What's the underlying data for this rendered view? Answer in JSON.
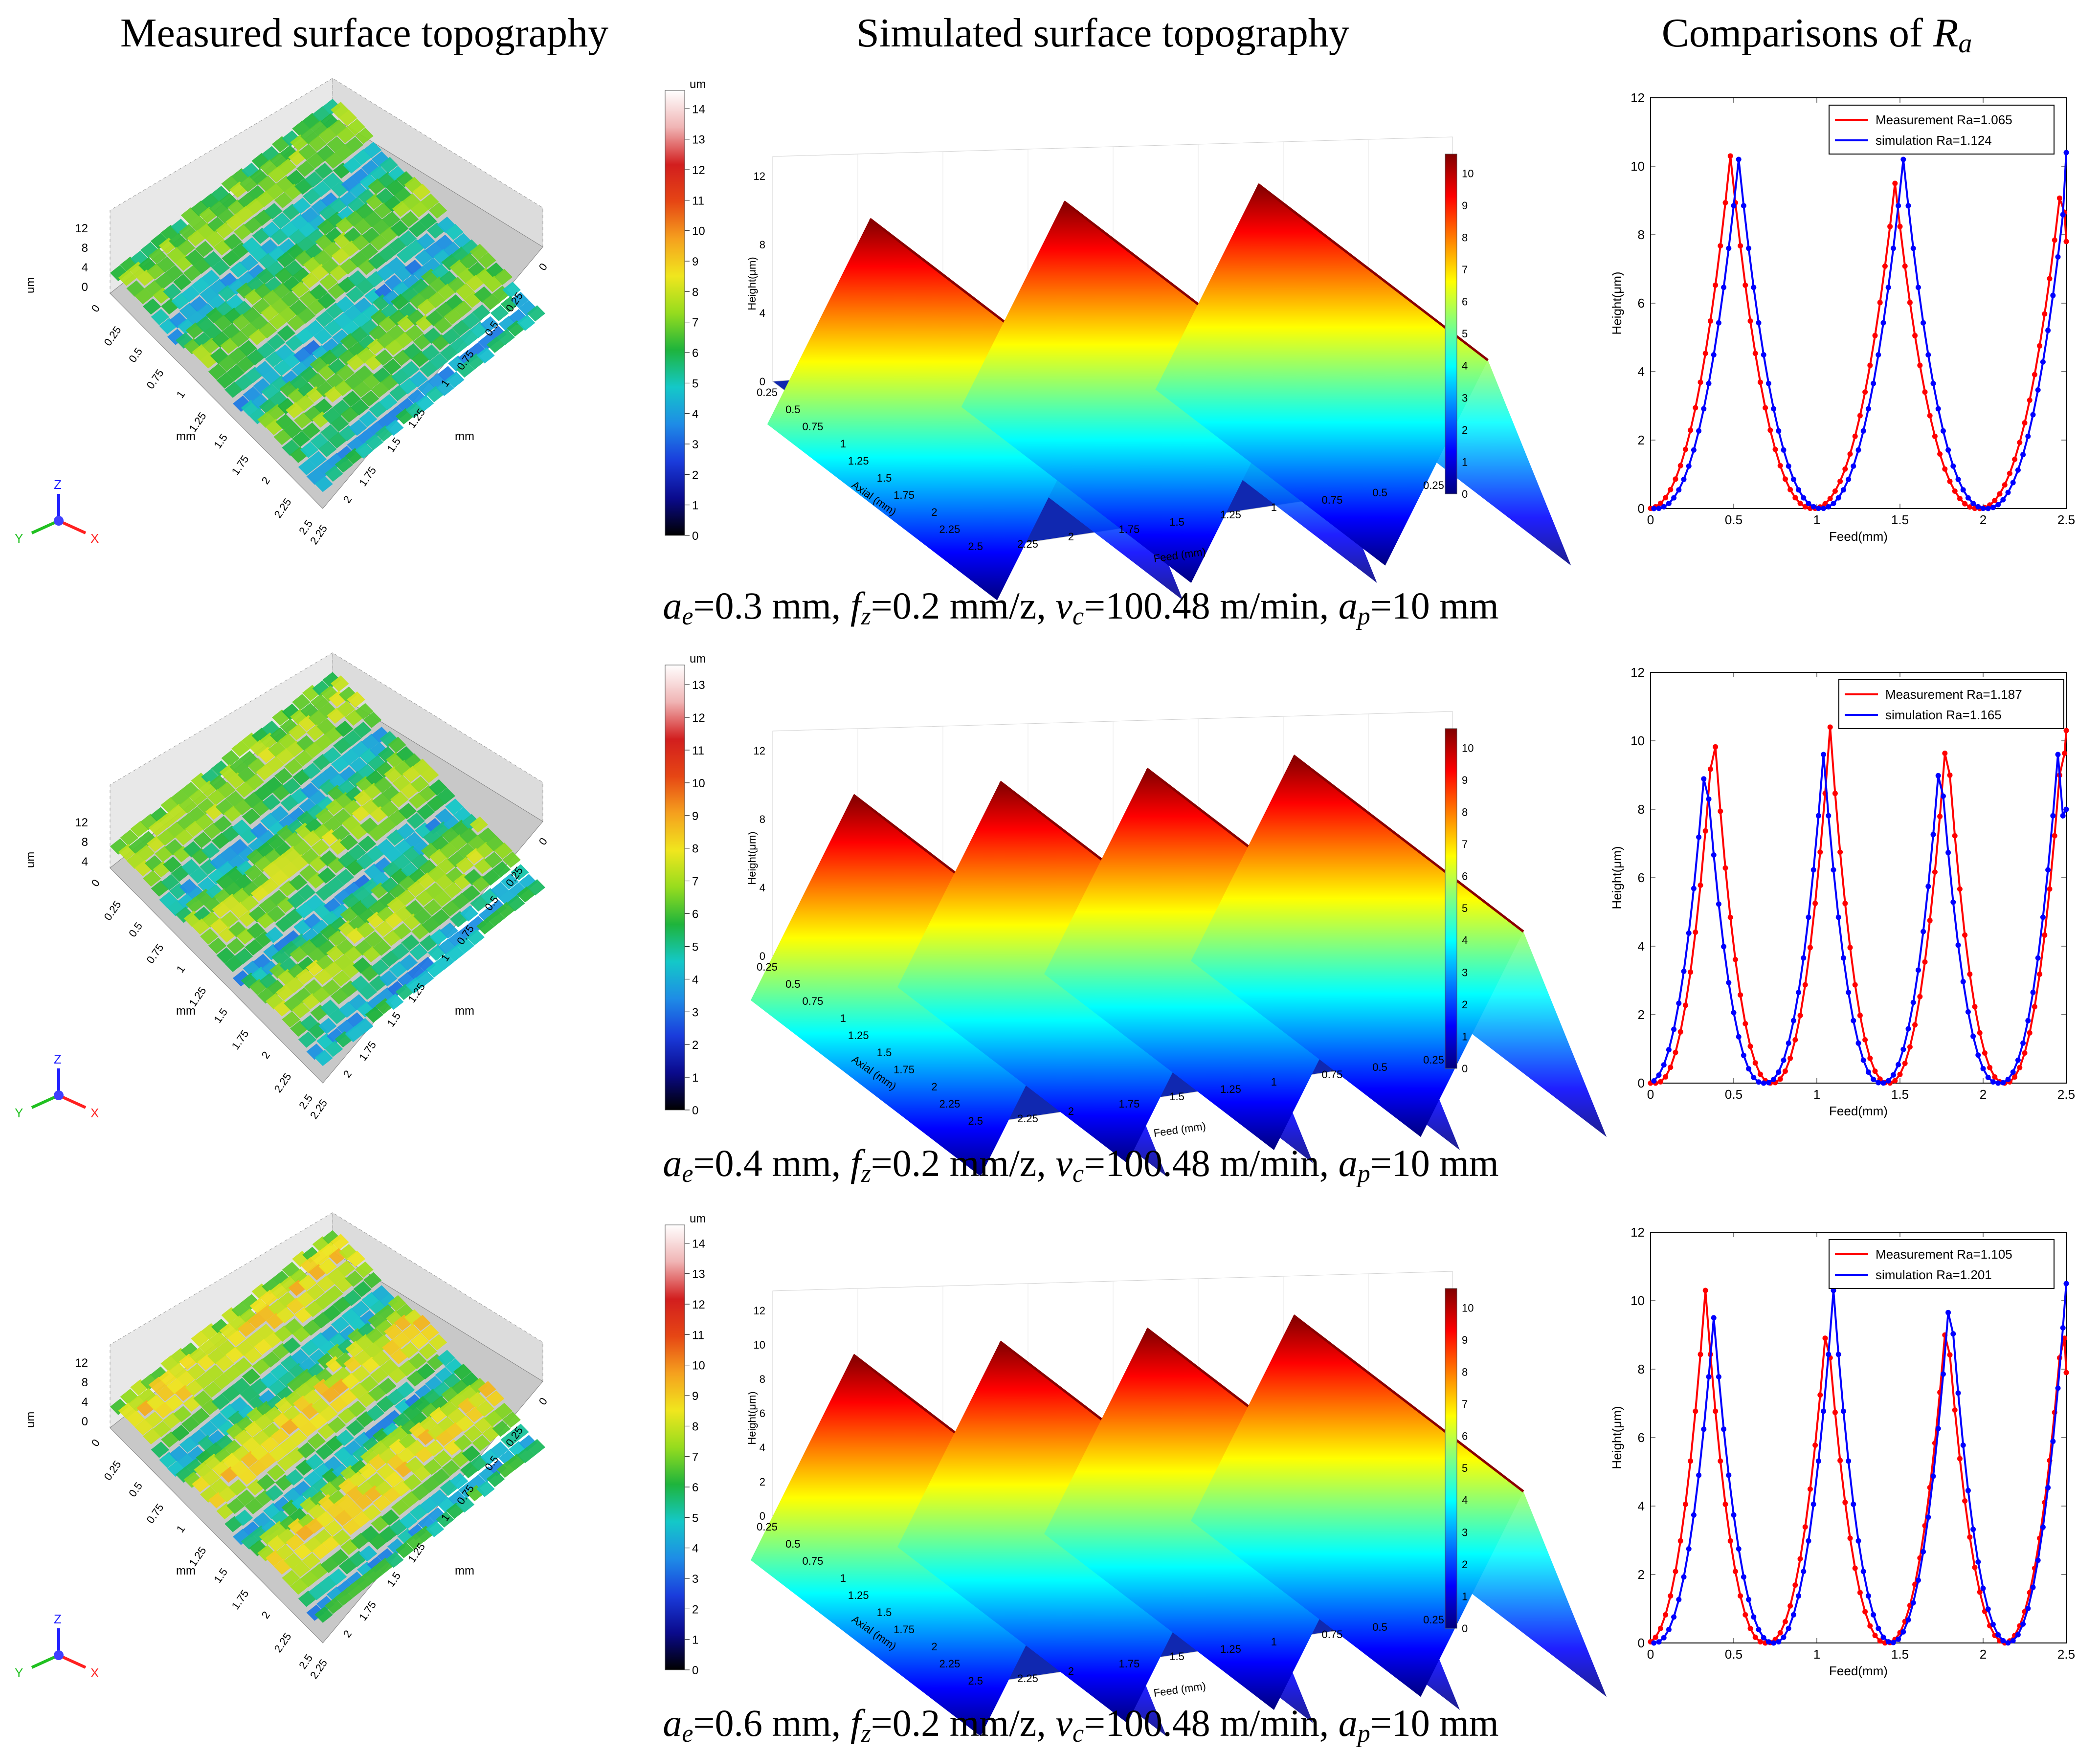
{
  "headers": {
    "measured": "Measured surface topography",
    "simulated": "Simulated surface topography",
    "comparison_prefix": "Comparisons of ",
    "comparison_symbol": "R",
    "comparison_sub": "a"
  },
  "colorbar": {
    "stops": [
      "#000000",
      "#0a0a8c",
      "#1a3cdc",
      "#1e8ce6",
      "#14c8c8",
      "#1eb43c",
      "#96dc1e",
      "#f0e61e",
      "#f5a01e",
      "#e64614",
      "#d21e1e",
      "#f0b4b4",
      "#ffffff"
    ],
    "sim_stops": [
      "#00007f",
      "#0000ff",
      "#0080ff",
      "#00ffff",
      "#80ff80",
      "#ffff00",
      "#ff8000",
      "#ff0000",
      "#7f0000"
    ]
  },
  "axis_icon": {
    "z": "Z",
    "y": "Y",
    "x": "X"
  },
  "rows": [
    {
      "caption": {
        "ae": "0.3",
        "fz": "0.2",
        "vc": "100.48",
        "ap": "10",
        "text_ae": "=0.3 mm, ",
        "text_fz": "=0.2 mm/z, ",
        "text_vc": "=100.48 m/min, ",
        "text_ap": "=10 mm"
      },
      "measured": {
        "unit": "um",
        "z_ticks": [
          "12",
          "8",
          "4",
          "0"
        ],
        "left_ticks": [
          "2.5",
          "2.25",
          "2",
          "1.75",
          "1.5",
          "1.25",
          "1",
          "0.75",
          "0.5",
          "0.25",
          "0"
        ],
        "right_ticks": [
          "0",
          "0.25",
          "0.5",
          "0.75",
          "1",
          "1.25",
          "1.5",
          "1.75",
          "2",
          "2.25"
        ],
        "axis_label": "mm",
        "colorbar_unit": "um",
        "colorbar_ticks": [
          "14",
          "13",
          "12",
          "11",
          "10",
          "9",
          "8",
          "7",
          "6",
          "5",
          "4",
          "3",
          "2",
          "1",
          "0"
        ],
        "colorbar_max": 14.6,
        "grooves": 3,
        "warmth": 0.0
      },
      "simulated": {
        "ylabel": "Height(μm)",
        "z_ticks": [
          "12",
          "8",
          "4",
          "0"
        ],
        "axial_label": "Axial (mm)",
        "axial_ticks": [
          "0.25",
          "0.5",
          "0.75",
          "1",
          "1.25",
          "1.5",
          "1.75",
          "2",
          "2.25",
          "2.5"
        ],
        "feed_label": "Feed (mm)",
        "feed_ticks": [
          "2.25",
          "2",
          "1.75",
          "1.5",
          "1.25",
          "1",
          "0.75",
          "0.5",
          "0.25"
        ],
        "colorbar_ticks": [
          "10",
          "9",
          "8",
          "7",
          "6",
          "5",
          "4",
          "3",
          "2",
          "1",
          "0"
        ],
        "ridges": 3
      },
      "comparison": {
        "type": "line",
        "xlabel": "Feed(mm)",
        "ylabel": "Height(μm)",
        "xlim": [
          0,
          2.5
        ],
        "ylim": [
          0,
          12
        ],
        "x_ticks": [
          0,
          0.5,
          1,
          1.5,
          2,
          2.5
        ],
        "y_ticks": [
          0,
          2,
          4,
          6,
          8,
          10,
          12
        ],
        "series": [
          {
            "name": "Measurement Ra=1.065",
            "color": "#ff0000",
            "period": 1.0,
            "peaks": [
              0.48,
              1.47,
              2.47
            ],
            "peak_heights": [
              10.3,
              9.5,
              9.5
            ],
            "end_value": 7.8
          },
          {
            "name": "simulation Ra=1.124",
            "color": "#0000ff",
            "period": 1.0,
            "peaks": [
              0.53,
              1.52,
              2.52
            ],
            "peak_heights": [
              10.2,
              10.2,
              10.4
            ],
            "end_value": 10.4
          }
        ],
        "legend_position": "top-right"
      }
    },
    {
      "caption": {
        "ae": "0.4",
        "fz": "0.2",
        "vc": "100.48",
        "ap": "10",
        "text_ae": "=0.4 mm, ",
        "text_fz": "=0.2 mm/z, ",
        "text_vc": "=100.48 m/min, ",
        "text_ap": "=10 mm"
      },
      "measured": {
        "unit": "um",
        "z_ticks": [
          "12",
          "8",
          "4"
        ],
        "left_ticks": [
          "2.5",
          "2.25",
          "2",
          "1.75",
          "1.5",
          "1.25",
          "1",
          "0.75",
          "0.5",
          "0.25",
          "0"
        ],
        "right_ticks": [
          "0",
          "0.25",
          "0.5",
          "0.75",
          "1",
          "1.25",
          "1.5",
          "1.75",
          "2",
          "2.25"
        ],
        "axis_label": "mm",
        "colorbar_unit": "um",
        "colorbar_ticks": [
          "13",
          "12",
          "11",
          "10",
          "9",
          "8",
          "7",
          "6",
          "5",
          "4",
          "3",
          "2",
          "1",
          "0"
        ],
        "colorbar_max": 13.6,
        "grooves": 3,
        "warmth": 0.15
      },
      "simulated": {
        "ylabel": "Height(μm)",
        "z_ticks": [
          "12",
          "8",
          "4",
          "0"
        ],
        "axial_label": "Axial (mm)",
        "axial_ticks": [
          "0.25",
          "0.5",
          "0.75",
          "1",
          "1.25",
          "1.5",
          "1.75",
          "2",
          "2.25",
          "2.5"
        ],
        "feed_label": "Feed (mm)",
        "feed_ticks": [
          "2.25",
          "2",
          "1.75",
          "1.5",
          "1.25",
          "1",
          "0.75",
          "0.5",
          "0.25"
        ],
        "colorbar_ticks": [
          "10",
          "9",
          "8",
          "7",
          "6",
          "5",
          "4",
          "3",
          "2",
          "1",
          "0"
        ],
        "ridges": 4
      },
      "comparison": {
        "type": "line",
        "xlabel": "Feed(mm)",
        "ylabel": "Height(μm)",
        "xlim": [
          0,
          2.5
        ],
        "ylim": [
          0,
          12
        ],
        "x_ticks": [
          0,
          0.5,
          1,
          1.5,
          2,
          2.5
        ],
        "y_ticks": [
          0,
          2,
          4,
          6,
          8,
          10,
          12
        ],
        "series": [
          {
            "name": "Measurement Ra=1.187",
            "color": "#ff0000",
            "period": 0.7,
            "peaks": [
              0.38,
              1.08,
              1.78,
              2.48
            ],
            "peak_heights": [
              10.5,
              10.4,
              10.3,
              10.3
            ],
            "end_value": 10.3
          },
          {
            "name": "simulation Ra=1.165",
            "color": "#0000ff",
            "period": 0.7,
            "peaks": [
              0.33,
              1.04,
              1.74,
              2.45
            ],
            "peak_heights": [
              9.5,
              9.6,
              9.6,
              9.6
            ],
            "end_value": 8.0
          }
        ],
        "legend_position": "top-right"
      }
    },
    {
      "caption": {
        "ae": "0.6",
        "fz": "0.2",
        "vc": "100.48",
        "ap": "10",
        "text_ae": "=0.6 mm, ",
        "text_fz": "=0.2 mm/z, ",
        "text_vc": "=100.48 m/min, ",
        "text_ap": "=10 mm"
      },
      "measured": {
        "unit": "um",
        "z_ticks": [
          "12",
          "8",
          "4",
          "0"
        ],
        "left_ticks": [
          "2.5",
          "2.25",
          "2",
          "1.75",
          "1.5",
          "1.25",
          "1",
          "0.75",
          "0.5",
          "0.25",
          "0"
        ],
        "right_ticks": [
          "0",
          "0.25",
          "0.5",
          "0.75",
          "1",
          "1.25",
          "1.5",
          "1.75",
          "2",
          "2.25"
        ],
        "axis_label": "mm",
        "colorbar_unit": "um",
        "colorbar_ticks": [
          "14",
          "13",
          "12",
          "11",
          "10",
          "9",
          "8",
          "7",
          "6",
          "5",
          "4",
          "3",
          "2",
          "1",
          "0"
        ],
        "colorbar_max": 14.6,
        "grooves": 3,
        "warmth": 0.55
      },
      "simulated": {
        "ylabel": "Height(μm)",
        "z_ticks": [
          "12",
          "10",
          "8",
          "6",
          "4",
          "2",
          "0"
        ],
        "axial_label": "Axial (mm)",
        "axial_ticks": [
          "0.25",
          "0.5",
          "0.75",
          "1",
          "1.25",
          "1.5",
          "1.75",
          "2",
          "2.25",
          "2.5"
        ],
        "feed_label": "Feed (mm)",
        "feed_ticks": [
          "2.25",
          "2",
          "1.75",
          "1.5",
          "1.25",
          "1",
          "0.75",
          "0.5",
          "0.25"
        ],
        "colorbar_ticks": [
          "10",
          "9",
          "8",
          "7",
          "6",
          "5",
          "4",
          "3",
          "2",
          "1",
          "0"
        ],
        "ridges": 4
      },
      "comparison": {
        "type": "line",
        "xlabel": "Feed(mm)",
        "ylabel": "Height(μm)",
        "xlim": [
          0,
          2.5
        ],
        "ylim": [
          0,
          12
        ],
        "x_ticks": [
          0,
          0.5,
          1,
          1.5,
          2,
          2.5
        ],
        "y_ticks": [
          0,
          2,
          4,
          6,
          8,
          10,
          12
        ],
        "series": [
          {
            "name": "Measurement Ra=1.105",
            "color": "#ff0000",
            "period": 0.72,
            "peaks": [
              0.33,
              1.06,
              1.78,
              2.48
            ],
            "peak_heights": [
              10.3,
              9.5,
              9.6,
              9.5
            ],
            "end_value": 7.9
          },
          {
            "name": "simulation Ra=1.201",
            "color": "#0000ff",
            "period": 0.72,
            "peaks": [
              0.38,
              1.1,
              1.8,
              2.5
            ],
            "peak_heights": [
              9.5,
              10.3,
              10.3,
              10.5
            ],
            "end_value": 10.5
          }
        ],
        "legend_position": "top-right"
      }
    }
  ],
  "chart_data": [
    {
      "type": "line",
      "title": "",
      "xlabel": "Feed(mm)",
      "ylabel": "Height(μm)",
      "xlim": [
        0,
        2.5
      ],
      "ylim": [
        0,
        12
      ],
      "series": [
        {
          "name": "Measurement Ra=1.065",
          "x": [
            0,
            0.2,
            0.35,
            0.48,
            0.6,
            0.8,
            0.95,
            1.2,
            1.35,
            1.47,
            1.6,
            1.8,
            1.95,
            2.2,
            2.35,
            2.47,
            2.5
          ],
          "values": [
            0,
            0.9,
            5.5,
            10.3,
            4.5,
            0.6,
            0,
            0.9,
            5.5,
            9.5,
            4.5,
            0.6,
            0,
            0.9,
            5.5,
            9.5,
            7.8
          ]
        },
        {
          "name": "simulation Ra=1.124",
          "x": [
            0.05,
            0.25,
            0.4,
            0.53,
            0.65,
            0.85,
            1.0,
            1.25,
            1.4,
            1.52,
            1.65,
            1.85,
            2.0,
            2.25,
            2.4,
            2.52
          ],
          "values": [
            0,
            0.9,
            4.5,
            10.2,
            4.5,
            0.6,
            0,
            0.9,
            4.5,
            10.2,
            4.5,
            0.6,
            0,
            0.9,
            4.5,
            10.4
          ]
        }
      ]
    },
    {
      "type": "line",
      "title": "",
      "xlabel": "Feed(mm)",
      "ylabel": "Height(μm)",
      "xlim": [
        0,
        2.5
      ],
      "ylim": [
        0,
        12
      ],
      "series": [
        {
          "name": "Measurement Ra=1.187",
          "x": [
            0.05,
            0.2,
            0.3,
            0.38,
            0.5,
            0.6,
            0.72,
            0.9,
            1.0,
            1.08,
            1.2,
            1.3,
            1.42,
            1.6,
            1.7,
            1.78,
            1.9,
            2.0,
            2.12,
            2.3,
            2.4,
            2.48
          ],
          "values": [
            0,
            1.2,
            5.5,
            10.5,
            5.0,
            1.0,
            0,
            1.2,
            5.5,
            10.4,
            5.0,
            1.0,
            0,
            1.2,
            5.5,
            10.3,
            5.0,
            1.0,
            0,
            1.2,
            5.5,
            10.3
          ]
        },
        {
          "name": "simulation Ra=1.165",
          "x": [
            0.0,
            0.15,
            0.25,
            0.33,
            0.45,
            0.55,
            0.68,
            0.85,
            0.95,
            1.04,
            1.15,
            1.25,
            1.38,
            1.55,
            1.65,
            1.74,
            1.85,
            1.95,
            2.08,
            2.25,
            2.35,
            2.45,
            2.5
          ],
          "values": [
            0,
            1.2,
            5.0,
            9.5,
            4.5,
            1.0,
            0,
            1.2,
            5.0,
            9.6,
            4.5,
            1.0,
            0,
            1.2,
            5.0,
            9.6,
            4.5,
            1.0,
            0,
            1.2,
            5.0,
            9.6,
            8.0
          ]
        }
      ]
    },
    {
      "type": "line",
      "title": "",
      "xlabel": "Feed(mm)",
      "ylabel": "Height(μm)",
      "xlim": [
        0,
        2.5
      ],
      "ylim": [
        0,
        12
      ],
      "series": [
        {
          "name": "Measurement Ra=1.105",
          "x": [
            0.05,
            0.15,
            0.25,
            0.33,
            0.45,
            0.55,
            0.7,
            0.9,
            1.0,
            1.06,
            1.2,
            1.3,
            1.42,
            1.6,
            1.7,
            1.78,
            1.9,
            2.0,
            2.12,
            2.3,
            2.4,
            2.48,
            2.5
          ],
          "values": [
            0.3,
            1.8,
            6.0,
            10.3,
            4.5,
            1.0,
            0,
            1.0,
            5.0,
            9.5,
            4.5,
            1.0,
            0,
            1.0,
            5.0,
            9.6,
            4.5,
            1.0,
            0,
            1.0,
            5.0,
            9.5,
            7.9
          ]
        },
        {
          "name": "simulation Ra=1.201",
          "x": [
            0.0,
            0.2,
            0.3,
            0.38,
            0.5,
            0.6,
            0.75,
            0.95,
            1.04,
            1.1,
            1.25,
            1.35,
            1.47,
            1.65,
            1.74,
            1.8,
            1.95,
            2.05,
            2.17,
            2.35,
            2.44,
            2.5
          ],
          "values": [
            0,
            1.0,
            5.0,
            9.5,
            4.5,
            1.0,
            0,
            1.0,
            5.0,
            10.3,
            4.5,
            1.0,
            0,
            1.0,
            5.0,
            10.3,
            4.5,
            1.0,
            0,
            1.0,
            5.0,
            10.5
          ]
        }
      ]
    }
  ]
}
